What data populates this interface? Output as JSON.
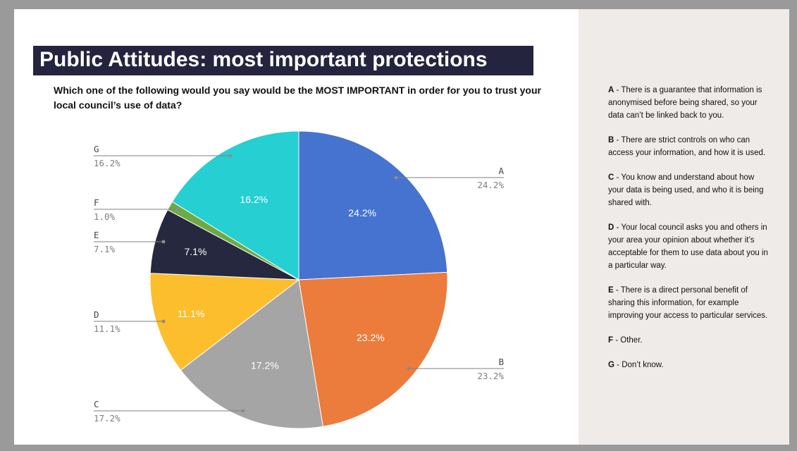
{
  "title": "Public Attitudes: most important protections",
  "question": "Which one of the following would you say would be the MOST IMPORTANT in order for you to trust your local council’s use of data?",
  "colors": {
    "title_bg": "#24243f",
    "panel_bg": "#efebe8"
  },
  "chart_data": {
    "type": "pie",
    "categories": [
      "A",
      "B",
      "C",
      "D",
      "E",
      "F",
      "G"
    ],
    "values": [
      24.2,
      23.2,
      17.2,
      11.1,
      7.1,
      1.0,
      16.2
    ],
    "value_labels": [
      "24.2%",
      "23.2%",
      "17.2%",
      "11.1%",
      "7.1%",
      "1.0%",
      "16.2%"
    ],
    "colors": [
      "#4573cf",
      "#eb7c3c",
      "#a5a5a5",
      "#fdbe2e",
      "#26283f",
      "#6ea944",
      "#25cfd2"
    ],
    "start_angle_deg": 0,
    "direction": "clockwise",
    "inside_labels_shown_for": [
      "A",
      "B",
      "C",
      "D",
      "E",
      "G"
    ],
    "legend": "right"
  },
  "legend": [
    {
      "key": "A",
      "sep": " - ",
      "text": "There is a guarantee that information is anonymised before being shared, so your data can’t be linked back to you."
    },
    {
      "key": "B",
      "sep": " - ",
      "text": "There are strict controls on who can access your information, and how it is used."
    },
    {
      "key": "C",
      "sep": " - ",
      "text": "You know and understand about how your data is being used, and who it is being shared with."
    },
    {
      "key": "D",
      "sep": " - ",
      "text": "Your local council asks you and others in your area your opinion about whether it’s acceptable for them to use data about you in a particular way."
    },
    {
      "key": "E",
      "sep": " - ",
      "text": "There is a direct personal benefit of sharing this information, for example improving your access to particular services."
    },
    {
      "key": "F",
      "sep": " - ",
      "text": "Other."
    },
    {
      "key": "G",
      "sep": " - ",
      "text": "Don’t know."
    }
  ]
}
